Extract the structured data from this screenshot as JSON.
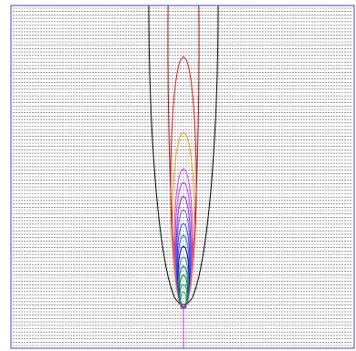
{
  "chart_data": {
    "type": "contour",
    "grid": true,
    "contour_colors": [
      "#000000",
      "#8b1a1a",
      "#d42020",
      "#f0a020",
      "#e040e0",
      "#b050e0",
      "#8a2be2",
      "#7060d0",
      "#2040ff",
      "#3060e0",
      "#000080",
      "#4682b4",
      "#008080",
      "#008000",
      "#008b8b",
      "#20a040"
    ]
  }
}
